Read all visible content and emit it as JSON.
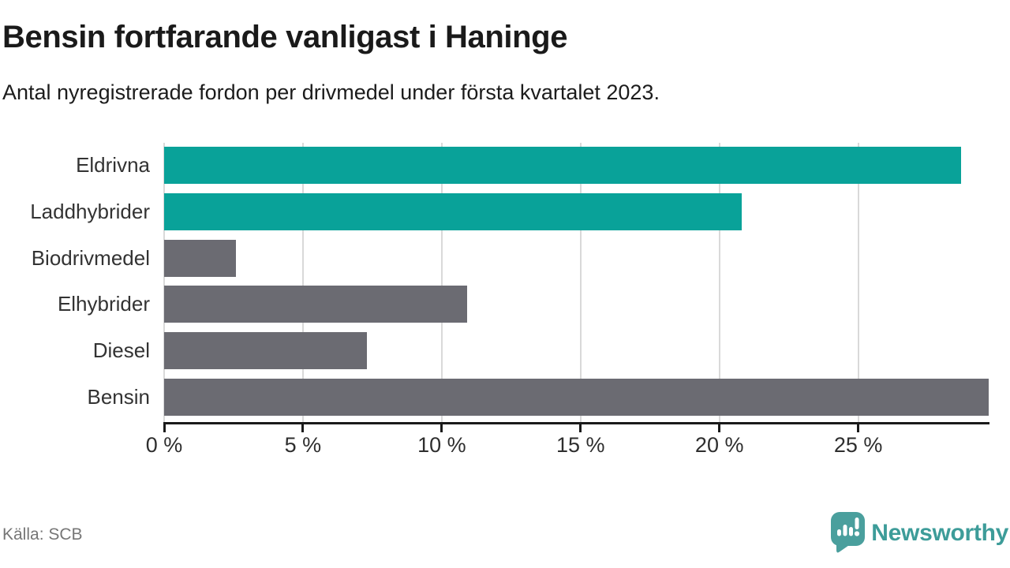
{
  "header": {
    "title": "Bensin fortfarande vanligast i Haninge",
    "subtitle": "Antal nyregistrerade fordon per drivmedel under första kvartalet 2023."
  },
  "chart_data": {
    "type": "bar",
    "orientation": "horizontal",
    "title": "Bensin fortfarande vanligast i Haninge",
    "subtitle": "Antal nyregistrerade fordon per drivmedel under första kvartalet 2023.",
    "xlabel": "",
    "ylabel": "",
    "unit": "%",
    "categories": [
      "Eldrivna",
      "Laddhybrider",
      "Biodrivmedel",
      "Elhybrider",
      "Diesel",
      "Bensin"
    ],
    "values": [
      28.7,
      20.8,
      2.6,
      10.9,
      7.3,
      29.7
    ],
    "bar_colors": [
      "#09a299",
      "#09a299",
      "#6b6b72",
      "#6b6b72",
      "#6b6b72",
      "#6b6b72"
    ],
    "xlim": [
      0,
      29.7
    ],
    "x_ticks": [
      {
        "value": 0,
        "label": "0 %"
      },
      {
        "value": 5,
        "label": "5 %"
      },
      {
        "value": 10,
        "label": "10 %"
      },
      {
        "value": 15,
        "label": "15 %"
      },
      {
        "value": 20,
        "label": "20 %"
      },
      {
        "value": 25,
        "label": "25 %"
      }
    ],
    "grid": "vertical-gridlines-behind-bars",
    "legend": "none"
  },
  "footer": {
    "source": "Källa: SCB",
    "brand": "Newsworthy"
  },
  "colors": {
    "accent_teal": "#09a299",
    "bar_gray": "#6b6b72",
    "gridline": "#d9d9d9",
    "axis": "#1a1a1a",
    "logo_teal": "#4a9f9d",
    "brand_text": "#3d9c99",
    "source_text": "#767676"
  }
}
